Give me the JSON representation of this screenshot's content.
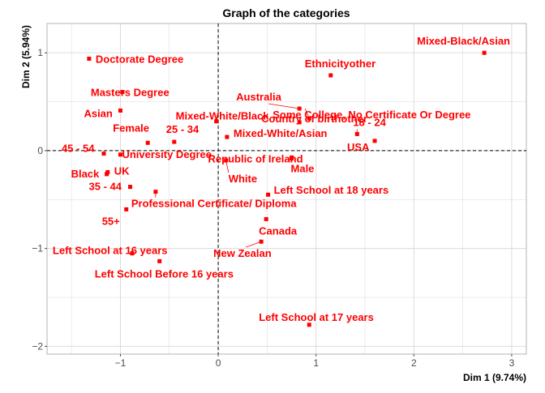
{
  "chart_data": {
    "type": "scatter",
    "title": "Graph of the categories",
    "xlabel": "Dim 1 (9.74%)",
    "ylabel": "Dim 2 (5.94%)",
    "xlim": [
      -1.75,
      3.15
    ],
    "ylim": [
      -2.08,
      1.3
    ],
    "xticks": [
      -1,
      0,
      1,
      2,
      3
    ],
    "yticks": [
      -2,
      -1,
      0,
      1
    ],
    "grid": true,
    "reference_lines": {
      "x": 0,
      "y": 0,
      "style": "dashed"
    },
    "point_color": "#ff0000",
    "label_color": "#ff0000",
    "points": [
      {
        "label": "Mixed-Black/Asian",
        "x": 2.72,
        "y": 1.0
      },
      {
        "label": "Doctorate Degree",
        "x": -1.32,
        "y": 0.94
      },
      {
        "label": "Ethnicityother",
        "x": 1.15,
        "y": 0.77
      },
      {
        "label": "Masters Degree",
        "x": -0.98,
        "y": 0.6
      },
      {
        "label": "Australia",
        "x": 0.83,
        "y": 0.43
      },
      {
        "label": "Some College, No Certificate Or Degree",
        "x": 0.93,
        "y": 0.33
      },
      {
        "label": "Country of birthother",
        "x": 0.83,
        "y": 0.29
      },
      {
        "label": "Asian",
        "x": -1.0,
        "y": 0.41
      },
      {
        "label": "Mixed-White/Black",
        "x": -0.02,
        "y": 0.3
      },
      {
        "label": "18 - 24",
        "x": 1.42,
        "y": 0.17
      },
      {
        "label": "Mixed-White/Asian",
        "x": 0.09,
        "y": 0.14
      },
      {
        "label": "USA",
        "x": 1.6,
        "y": 0.1
      },
      {
        "label": "Female",
        "x": -0.72,
        "y": 0.08
      },
      {
        "label": "25 - 34",
        "x": -0.45,
        "y": 0.09
      },
      {
        "label": "45 - 54",
        "x": -1.17,
        "y": -0.03
      },
      {
        "label": "University Degree",
        "x": -1.0,
        "y": -0.04
      },
      {
        "label": "Republic of Ireland",
        "x": 0.75,
        "y": -0.08
      },
      {
        "label": "White",
        "x": 0.08,
        "y": -0.1
      },
      {
        "label": "Male",
        "x": 0.75,
        "y": -0.07
      },
      {
        "label": "Black",
        "x": -1.14,
        "y": -0.24
      },
      {
        "label": "UK",
        "x": -1.13,
        "y": -0.22
      },
      {
        "label": "35 - 44",
        "x": -0.9,
        "y": -0.37
      },
      {
        "label": "Left School at 18 years",
        "x": 0.51,
        "y": -0.45
      },
      {
        "label": "Professional Certificate/ Diploma",
        "x": -0.64,
        "y": -0.42
      },
      {
        "label": "55+",
        "x": -0.94,
        "y": -0.6
      },
      {
        "label": "Canada",
        "x": 0.49,
        "y": -0.7
      },
      {
        "label": "Left School at 16 years",
        "x": -0.88,
        "y": -1.05
      },
      {
        "label": "New Zealan",
        "x": 0.44,
        "y": -0.93
      },
      {
        "label": "Left School Before 16 years",
        "x": -0.6,
        "y": -1.13
      },
      {
        "label": "Left School at 17 years",
        "x": 0.93,
        "y": -1.78
      }
    ]
  }
}
